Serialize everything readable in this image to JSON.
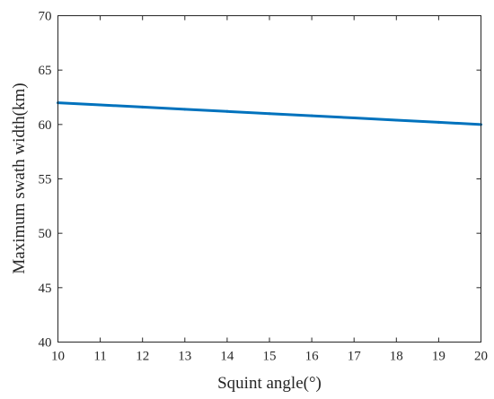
{
  "chart_data": {
    "type": "line",
    "title": "",
    "xlabel": "Squint angle(°)",
    "ylabel": "Maximum swath width(km)",
    "xlim": [
      10,
      20
    ],
    "ylim": [
      40,
      70
    ],
    "xticks": [
      10,
      11,
      12,
      13,
      14,
      15,
      16,
      17,
      18,
      19,
      20
    ],
    "yticks": [
      40,
      45,
      50,
      55,
      60,
      65,
      70
    ],
    "grid": false,
    "legend": "none",
    "series": [
      {
        "color": "#0072BD",
        "x": [
          10,
          11,
          12,
          13,
          14,
          15,
          16,
          17,
          18,
          19,
          20
        ],
        "y": [
          62.0,
          61.8,
          61.6,
          61.4,
          61.2,
          61.0,
          60.8,
          60.6,
          60.4,
          60.2,
          60.0
        ]
      }
    ]
  }
}
